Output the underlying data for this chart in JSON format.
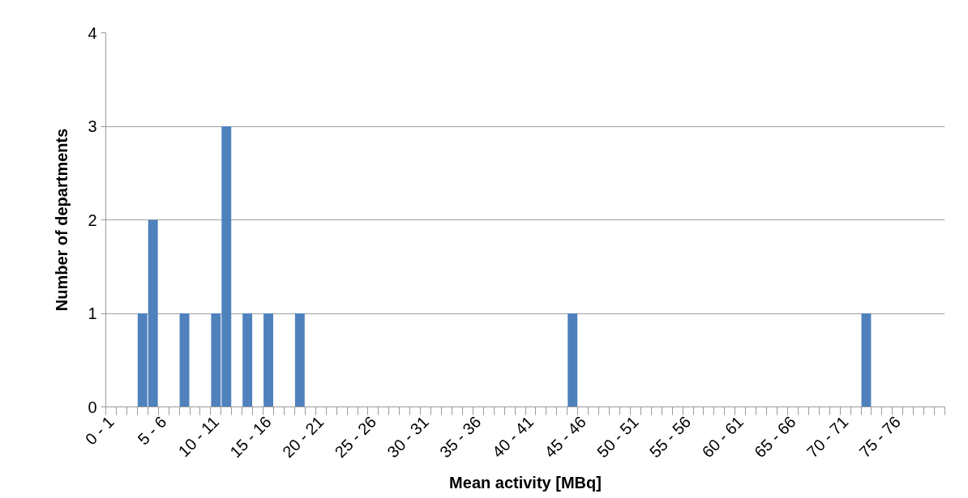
{
  "chart_data": {
    "type": "bar",
    "xlabel": "Mean activity [MBq]",
    "ylabel": "Number of departments",
    "categories": [
      "0 - 1",
      null,
      null,
      null,
      null,
      "5 - 6",
      null,
      null,
      null,
      null,
      "10 - 11",
      null,
      null,
      null,
      null,
      "15 - 16",
      null,
      null,
      null,
      null,
      "20 - 21",
      null,
      null,
      null,
      null,
      "25 - 26",
      null,
      null,
      null,
      null,
      "30 - 31",
      null,
      null,
      null,
      null,
      "35 - 36",
      null,
      null,
      null,
      null,
      "40 - 41",
      null,
      null,
      null,
      null,
      "45 - 46",
      null,
      null,
      null,
      null,
      "50 - 51",
      null,
      null,
      null,
      null,
      "55 - 56",
      null,
      null,
      null,
      null,
      "60 - 61",
      null,
      null,
      null,
      null,
      "65 - 66",
      null,
      null,
      null,
      null,
      "70 - 71",
      null,
      null,
      null,
      null,
      "75 - 76",
      null,
      null,
      null,
      null
    ],
    "values": [
      0,
      0,
      0,
      1,
      2,
      0,
      0,
      1,
      0,
      0,
      1,
      3,
      0,
      1,
      0,
      1,
      0,
      0,
      1,
      0,
      0,
      0,
      0,
      0,
      0,
      0,
      0,
      0,
      0,
      0,
      0,
      0,
      0,
      0,
      0,
      0,
      0,
      0,
      0,
      0,
      0,
      0,
      0,
      0,
      1,
      0,
      0,
      0,
      0,
      0,
      0,
      0,
      0,
      0,
      0,
      0,
      0,
      0,
      0,
      0,
      0,
      0,
      0,
      0,
      0,
      0,
      0,
      0,
      0,
      0,
      0,
      0,
      1,
      0,
      0,
      0,
      0,
      0,
      0,
      0
    ],
    "color": "#4f81bd",
    "ylim": [
      0,
      4
    ],
    "yticks": [
      0,
      1,
      2,
      3,
      4
    ],
    "grid": "y"
  }
}
